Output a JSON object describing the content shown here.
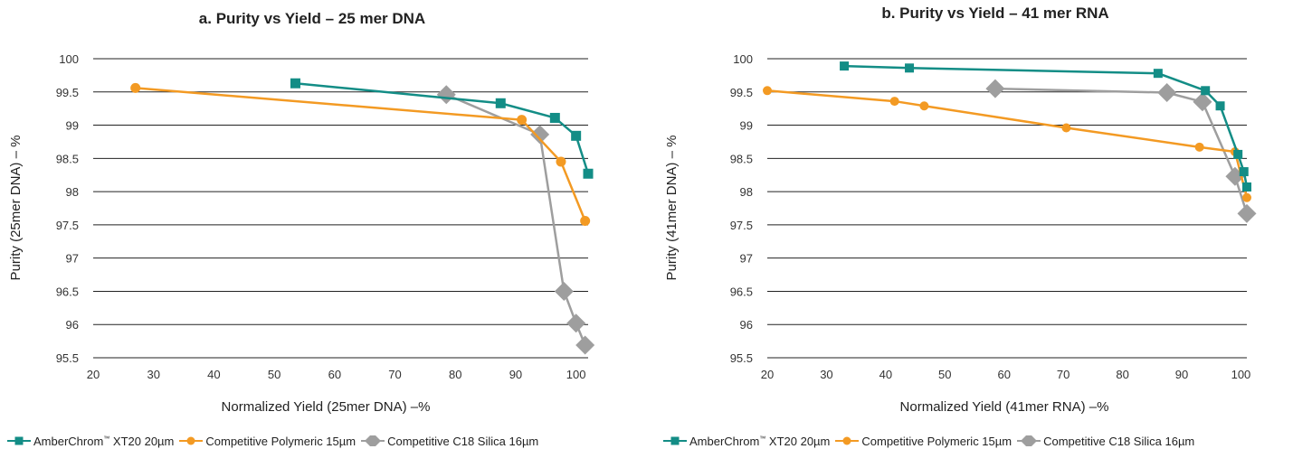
{
  "legend": [
    {
      "label_main": "AmberChrom",
      "label_sup": "™",
      "label_rest": " XT20 20µm",
      "color": "#138D86",
      "marker": "square"
    },
    {
      "label_main": "Competitive Polymeric 15µm",
      "label_sup": "",
      "label_rest": "",
      "color": "#F39A23",
      "marker": "circle"
    },
    {
      "label_main": "Competitive C18 Silica 16µm",
      "label_sup": "",
      "label_rest": "",
      "color": "#9E9E9E",
      "marker": "diamond"
    }
  ],
  "chart_data": [
    {
      "type": "line",
      "title": "a. Purity vs Yield – 25 mer DNA",
      "xlabel": "Normalized Yield (25mer DNA) –%",
      "ylabel": "Purity (25mer DNA) – %",
      "xlim": [
        20,
        102
      ],
      "ylim": [
        95.5,
        100
      ],
      "xticks": [
        20,
        30,
        40,
        50,
        60,
        70,
        80,
        90,
        100
      ],
      "yticks": [
        95.5,
        96,
        96.5,
        97,
        97.5,
        98,
        98.5,
        99,
        99.5,
        100
      ],
      "ytick_labels": [
        "95.5",
        "96",
        "96.5",
        "97",
        "97.5",
        "98",
        "98.5",
        "99",
        "99.5",
        "100"
      ],
      "grid": "horizontal",
      "legend_position": "bottom",
      "series": [
        {
          "name": "AmberChrom™ XT20 20µm",
          "color": "#138D86",
          "marker": "square",
          "x": [
            53.5,
            87.5,
            96.5,
            100,
            102
          ],
          "y": [
            99.63,
            99.33,
            99.11,
            98.84,
            98.27
          ]
        },
        {
          "name": "Competitive Polymeric 15µm",
          "color": "#F39A23",
          "marker": "circle",
          "x": [
            27,
            91,
            97.5,
            101.5
          ],
          "y": [
            99.56,
            99.08,
            98.45,
            97.56
          ]
        },
        {
          "name": "Competitive C18 Silica 16µm",
          "color": "#9E9E9E",
          "marker": "diamond",
          "x": [
            78.5,
            94,
            98,
            100,
            101.5
          ],
          "y": [
            99.46,
            98.86,
            96.5,
            96.02,
            95.69
          ]
        }
      ]
    },
    {
      "type": "line",
      "title": "b. Purity vs Yield – 41 mer RNA",
      "xlabel": "Normalized Yield (41mer RNA) –%",
      "ylabel": "Purity (41mer DNA) – %",
      "xlim": [
        20,
        101
      ],
      "ylim": [
        95.5,
        100
      ],
      "xticks": [
        20,
        30,
        40,
        50,
        60,
        70,
        80,
        90,
        100
      ],
      "yticks": [
        95.5,
        96,
        96.5,
        97,
        97.5,
        98,
        98.5,
        99,
        99.5,
        100
      ],
      "ytick_labels": [
        "95.5",
        "96",
        "96.5",
        "97",
        "97.5",
        "98",
        "98.5",
        "99",
        "99.5",
        "100"
      ],
      "grid": "horizontal",
      "legend_position": "bottom",
      "series": [
        {
          "name": "AmberChrom™ XT20 20µm",
          "color": "#138D86",
          "marker": "square",
          "x": [
            33,
            44,
            86,
            94,
            96.5,
            99.5,
            100.5,
            101
          ],
          "y": [
            99.89,
            99.86,
            99.78,
            99.52,
            99.29,
            98.56,
            98.3,
            98.07
          ]
        },
        {
          "name": "Competitive Polymeric 15µm",
          "color": "#F39A23",
          "marker": "circle",
          "x": [
            20,
            41.5,
            46.5,
            70.5,
            93,
            99,
            101
          ],
          "y": [
            99.52,
            99.36,
            99.29,
            98.96,
            98.67,
            98.6,
            97.91
          ]
        },
        {
          "name": "Competitive C18 Silica 16µm",
          "color": "#9E9E9E",
          "marker": "diamond",
          "x": [
            58.5,
            87.5,
            93.5,
            99,
            101
          ],
          "y": [
            99.55,
            99.49,
            99.35,
            98.23,
            97.67
          ]
        }
      ]
    }
  ]
}
